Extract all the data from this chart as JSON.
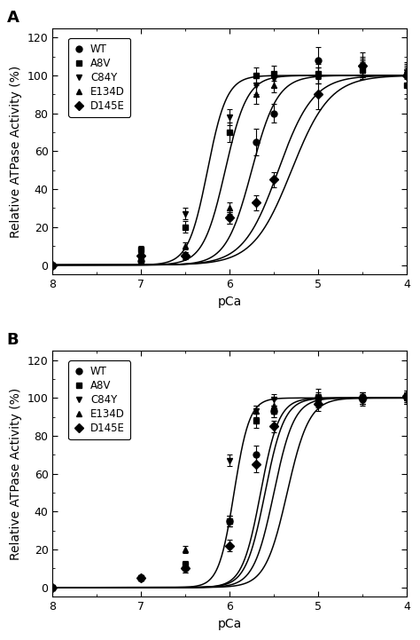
{
  "panel_A": {
    "label": "A",
    "series": [
      {
        "name": "WT",
        "marker": "o",
        "pca50": 5.45,
        "hill": 2.2,
        "x_data": [
          8.0,
          7.0,
          6.5,
          6.0,
          5.7,
          5.5,
          5.0,
          4.5,
          4.0
        ],
        "y_data": [
          0,
          2,
          5,
          25,
          65,
          80,
          108,
          105,
          100
        ],
        "y_err": [
          0.5,
          1.5,
          2,
          3,
          7,
          5,
          7,
          5,
          4
        ]
      },
      {
        "name": "A8V",
        "marker": "s",
        "pca50": 6.05,
        "hill": 3.5,
        "x_data": [
          8.0,
          7.0,
          6.5,
          6.0,
          5.7,
          5.5,
          5.0,
          4.5,
          4.0
        ],
        "y_data": [
          0,
          8,
          20,
          70,
          100,
          101,
          101,
          103,
          95
        ],
        "y_err": [
          0.5,
          2,
          3,
          5,
          4,
          4,
          5,
          5,
          7
        ]
      },
      {
        "name": "C84Y",
        "marker": "v",
        "pca50": 6.25,
        "hill": 4.0,
        "x_data": [
          8.0,
          7.0,
          6.5,
          6.0,
          5.7,
          5.5,
          5.0,
          4.5,
          4.0
        ],
        "y_data": [
          0,
          7,
          27,
          78,
          95,
          98,
          100,
          104,
          102
        ],
        "y_err": [
          0.5,
          1.5,
          3,
          4,
          5,
          4,
          4,
          5,
          4
        ]
      },
      {
        "name": "E134D",
        "marker": "^",
        "pca50": 5.75,
        "hill": 3.0,
        "x_data": [
          8.0,
          7.0,
          6.5,
          6.0,
          5.7,
          5.5,
          5.0,
          4.5,
          4.0
        ],
        "y_data": [
          0,
          5,
          10,
          30,
          90,
          95,
          100,
          103,
          103
        ],
        "y_err": [
          0.5,
          1.5,
          2,
          3,
          5,
          4,
          4,
          4,
          4
        ]
      },
      {
        "name": "D145E",
        "marker": "D",
        "pca50": 5.3,
        "hill": 2.0,
        "x_data": [
          8.0,
          7.0,
          6.5,
          6.0,
          5.7,
          5.5,
          5.0,
          4.5,
          4.0
        ],
        "y_data": [
          0,
          5,
          5,
          25,
          33,
          45,
          90,
          105,
          100
        ],
        "y_err": [
          0.5,
          1.5,
          2,
          3,
          4,
          4,
          8,
          7,
          5
        ]
      }
    ]
  },
  "panel_B": {
    "label": "B",
    "series": [
      {
        "name": "WT",
        "marker": "o",
        "pca50": 5.5,
        "hill": 3.8,
        "x_data": [
          8.0,
          7.0,
          6.5,
          6.0,
          5.7,
          5.5,
          5.0,
          4.5,
          4.0
        ],
        "y_data": [
          0,
          5,
          10,
          35,
          70,
          93,
          100,
          99,
          100
        ],
        "y_err": [
          0.5,
          1,
          2,
          3,
          5,
          3,
          3,
          3,
          3
        ]
      },
      {
        "name": "A8V",
        "marker": "s",
        "pca50": 5.6,
        "hill": 4.0,
        "x_data": [
          8.0,
          7.0,
          6.5,
          6.0,
          5.7,
          5.5,
          5.0,
          4.5,
          4.0
        ],
        "y_data": [
          0,
          5,
          12,
          35,
          88,
          93,
          100,
          100,
          101
        ],
        "y_err": [
          0.5,
          1.5,
          2,
          3,
          4,
          3,
          5,
          3,
          3
        ]
      },
      {
        "name": "C84Y",
        "marker": "v",
        "pca50": 5.95,
        "hill": 5.0,
        "x_data": [
          8.0,
          7.0,
          6.5,
          6.0,
          5.7,
          5.5,
          5.0,
          4.5,
          4.0
        ],
        "y_data": [
          0,
          5,
          12,
          67,
          93,
          99,
          99,
          100,
          100
        ],
        "y_err": [
          0.5,
          1.5,
          2,
          3,
          3,
          3,
          3,
          3,
          3
        ]
      },
      {
        "name": "E134D",
        "marker": "^",
        "pca50": 5.65,
        "hill": 4.2,
        "x_data": [
          8.0,
          7.0,
          6.5,
          6.0,
          5.7,
          5.5,
          5.0,
          4.5,
          4.0
        ],
        "y_data": [
          0,
          5,
          20,
          35,
          93,
          96,
          99,
          100,
          100
        ],
        "y_err": [
          0.5,
          1.5,
          2,
          3,
          3,
          3,
          3,
          3,
          3
        ]
      },
      {
        "name": "D145E",
        "marker": "D",
        "pca50": 5.35,
        "hill": 3.5,
        "x_data": [
          8.0,
          7.0,
          6.5,
          6.0,
          5.7,
          5.5,
          5.0,
          4.5,
          4.0
        ],
        "y_data": [
          0,
          5,
          10,
          22,
          65,
          85,
          97,
          100,
          101
        ],
        "y_err": [
          0.5,
          1.5,
          2,
          3,
          4,
          3,
          4,
          3,
          3
        ]
      }
    ]
  },
  "xlabel": "pCa",
  "ylabel": "Relative ATPase Activity (%)",
  "ylim": [
    -5,
    125
  ],
  "xticks": [
    8,
    7,
    6,
    5,
    4
  ],
  "yticks": [
    0,
    20,
    40,
    60,
    80,
    100,
    120
  ],
  "color": "black",
  "markersize": 5,
  "linewidth": 1.1,
  "capsize": 2,
  "legend_fontsize": 8.5,
  "tick_fontsize": 9,
  "label_fontsize": 10,
  "panel_label_fontsize": 13
}
